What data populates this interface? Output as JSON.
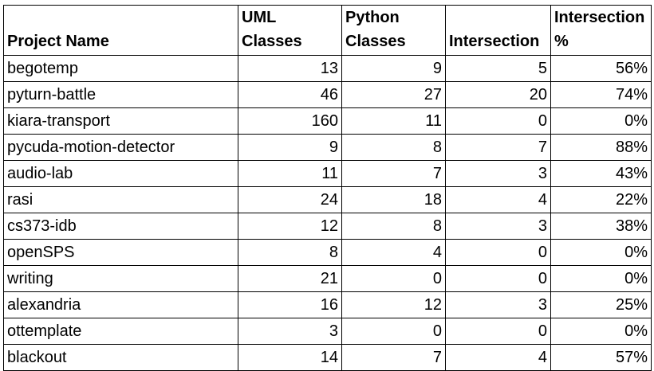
{
  "table": {
    "headers": [
      [
        "Project Name"
      ],
      [
        "UML",
        "Classes"
      ],
      [
        "Python",
        "Classes"
      ],
      [
        "Intersection"
      ],
      [
        "Intersection",
        "%"
      ]
    ],
    "rows": [
      [
        "begotemp",
        "13",
        "9",
        "5",
        "56%"
      ],
      [
        "pyturn-battle",
        "46",
        "27",
        "20",
        "74%"
      ],
      [
        "kiara-transport",
        "160",
        "11",
        "0",
        "0%"
      ],
      [
        "pycuda-motion-detector",
        "9",
        "8",
        "7",
        "88%"
      ],
      [
        "audio-lab",
        "11",
        "7",
        "3",
        "43%"
      ],
      [
        "rasi",
        "24",
        "18",
        "4",
        "22%"
      ],
      [
        "cs373-idb",
        "12",
        "8",
        "3",
        "38%"
      ],
      [
        "openSPS",
        "8",
        "4",
        "0",
        "0%"
      ],
      [
        "writing",
        "21",
        "0",
        "0",
        "0%"
      ],
      [
        "alexandria",
        "16",
        "12",
        "3",
        "25%"
      ],
      [
        "ottemplate",
        "3",
        "0",
        "0",
        "0%"
      ],
      [
        "blackout",
        "14",
        "7",
        "4",
        "57%"
      ]
    ]
  }
}
